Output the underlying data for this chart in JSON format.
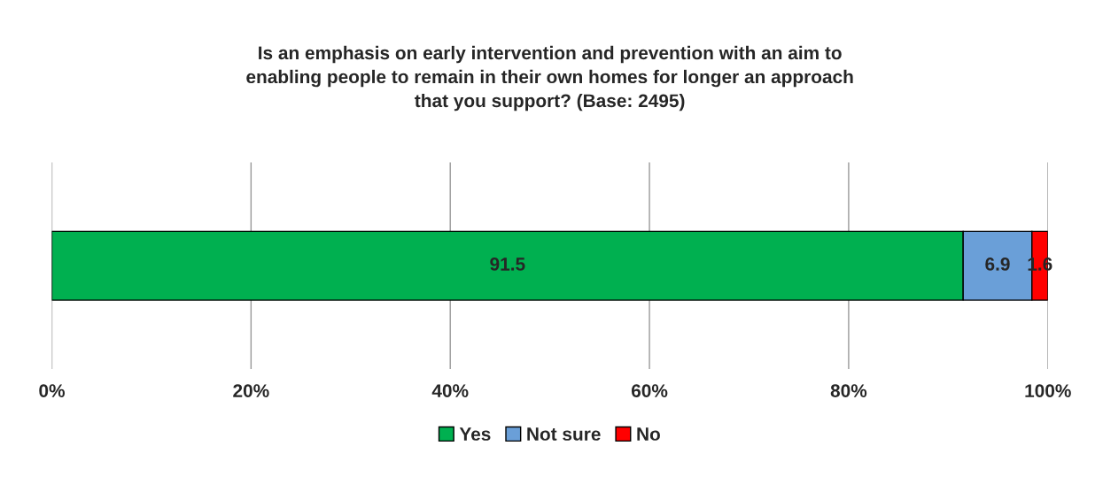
{
  "chart_data": {
    "type": "bar",
    "orientation": "horizontal",
    "stacked": true,
    "title": "Is an emphasis on early intervention and prevention with an aim to\nenabling people to remain in their own homes for longer an approach\nthat you support? (Base: 2495)",
    "categories": [
      null
    ],
    "series": [
      {
        "name": "Yes",
        "color": "#00b050",
        "values": [
          91.5
        ]
      },
      {
        "name": "Not sure",
        "color": "#6a9fd8",
        "values": [
          6.9
        ]
      },
      {
        "name": "No",
        "color": "#ff0000",
        "values": [
          1.6
        ]
      }
    ],
    "xlim": [
      0,
      100
    ],
    "xticks": [
      {
        "value": 0,
        "label": "0%"
      },
      {
        "value": 20,
        "label": "20%"
      },
      {
        "value": 40,
        "label": "40%"
      },
      {
        "value": 60,
        "label": "60%"
      },
      {
        "value": 80,
        "label": "80%"
      },
      {
        "value": 100,
        "label": "100%"
      }
    ],
    "grid": "x",
    "legend": "bottom",
    "data_labels": true
  }
}
